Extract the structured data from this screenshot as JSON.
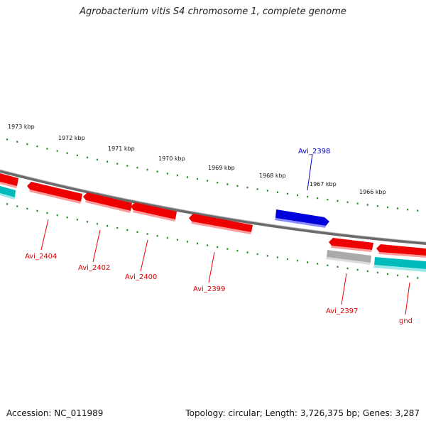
{
  "title": "Agrobacterium vitis S4 chromosome 1, complete genome",
  "accession": "Accession: NC_011989",
  "summary": "Topology: circular; Length: 3,726,375 bp; Genes: 3,287",
  "colors": {
    "forward_gene": "#0000dd",
    "reverse_gene": "#ee0000",
    "gray_gene": "#aaaaaa",
    "cyan_gene": "#00bbbb",
    "backbone": "#808080",
    "ticks": "#228822"
  },
  "scale_labels": [
    "1973 kbp",
    "1972 kbp",
    "1971 kbp",
    "1970 kbp",
    "1969 kbp",
    "1968 kbp",
    "1967 kbp",
    "1966 kbp"
  ],
  "genes": [
    {
      "label": "Avi_2404",
      "strand": "reverse",
      "color": "red"
    },
    {
      "label": "Avi_2402",
      "strand": "reverse",
      "color": "red"
    },
    {
      "label": "Avi_2400",
      "strand": "reverse",
      "color": "red"
    },
    {
      "label": "Avi_2399",
      "strand": "reverse",
      "color": "red"
    },
    {
      "label": "Avi_2398",
      "strand": "forward",
      "color": "blue"
    },
    {
      "label": "Avi_2397",
      "strand": "reverse",
      "color": "red"
    },
    {
      "label": "gnd",
      "strand": "reverse",
      "color": "red"
    }
  ]
}
